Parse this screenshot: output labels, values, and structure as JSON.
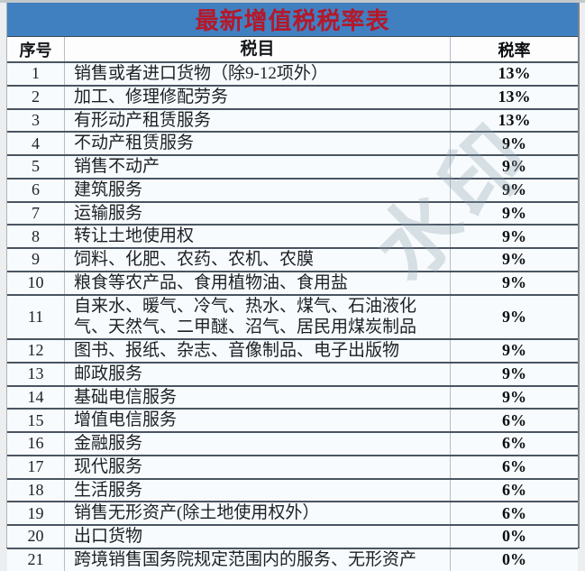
{
  "title": "最新增值税税率表",
  "watermark": "水印",
  "colors": {
    "title_bar_bg": "#4080c1",
    "title_text": "#b5182a",
    "row_bg": "#f8fbfd",
    "border_dark": "#4a5561",
    "border_light": "#b3bec6",
    "rate_text": "#0b0d0f"
  },
  "table": {
    "headers": [
      "序号",
      "税目",
      "税率"
    ],
    "rows": [
      {
        "no": "1",
        "item": "销售或者进口货物（除9-12项外）",
        "rate": "13%"
      },
      {
        "no": "2",
        "item": "加工、修理修配劳务",
        "rate": "13%"
      },
      {
        "no": "3",
        "item": "有形动产租赁服务",
        "rate": "13%"
      },
      {
        "no": "4",
        "item": "不动产租赁服务",
        "rate": "9%"
      },
      {
        "no": "5",
        "item": "销售不动产",
        "rate": "9%"
      },
      {
        "no": "6",
        "item": "建筑服务",
        "rate": "9%"
      },
      {
        "no": "7",
        "item": "运输服务",
        "rate": "9%"
      },
      {
        "no": "8",
        "item": "转让土地使用权",
        "rate": "9%"
      },
      {
        "no": "9",
        "item": "饲料、化肥、农药、农机、农膜",
        "rate": "9%"
      },
      {
        "no": "10",
        "item": "粮食等农产品、食用植物油、食用盐",
        "rate": "9%"
      },
      {
        "no": "11",
        "item": "自来水、暖气、冷气、热水、煤气、石油液化气、天然气、二甲醚、沼气、居民用煤炭制品",
        "rate": "9%"
      },
      {
        "no": "12",
        "item": "图书、报纸、杂志、音像制品、电子出版物",
        "rate": "9%"
      },
      {
        "no": "13",
        "item": "邮政服务",
        "rate": "9%"
      },
      {
        "no": "14",
        "item": "基础电信服务",
        "rate": "9%"
      },
      {
        "no": "15",
        "item": "增值电信服务",
        "rate": "6%"
      },
      {
        "no": "16",
        "item": "金融服务",
        "rate": "6%"
      },
      {
        "no": "17",
        "item": "现代服务",
        "rate": "6%"
      },
      {
        "no": "18",
        "item": "生活服务",
        "rate": "6%"
      },
      {
        "no": "19",
        "item": "销售无形资产(除土地使用权外）",
        "rate": "6%"
      },
      {
        "no": "20",
        "item": "出口货物",
        "rate": "0%"
      },
      {
        "no": "21",
        "item": "跨境销售国务院规定范围内的服务、无形资产",
        "rate": "0%"
      }
    ]
  }
}
